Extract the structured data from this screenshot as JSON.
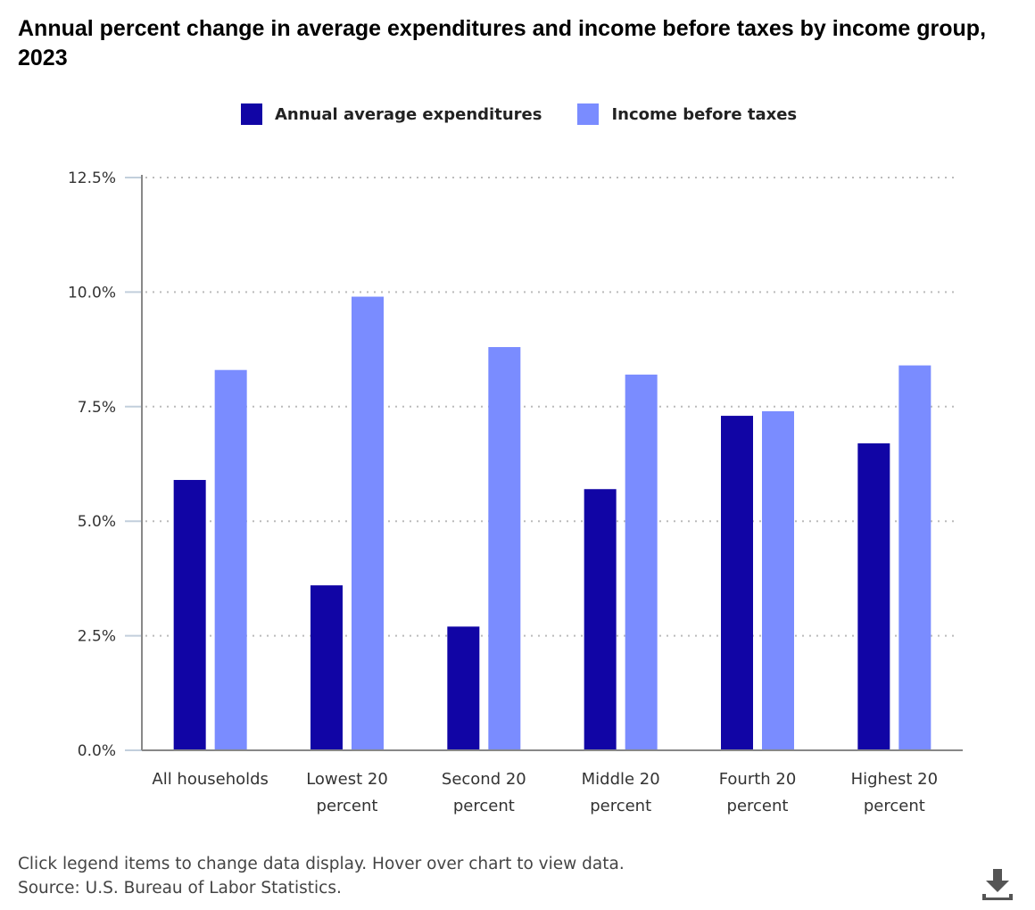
{
  "title": "Annual percent change in average expenditures and income before taxes by income group, 2023",
  "colors": {
    "expenditures": "#1105a5",
    "income": "#7a8cff"
  },
  "chart_data": {
    "type": "bar",
    "title": "Annual percent change in average expenditures and income before taxes by income group, 2023",
    "categories": [
      [
        "All households"
      ],
      [
        "Lowest 20",
        "percent"
      ],
      [
        "Second 20",
        "percent"
      ],
      [
        "Middle 20",
        "percent"
      ],
      [
        "Fourth 20",
        "percent"
      ],
      [
        "Highest 20",
        "percent"
      ]
    ],
    "series": [
      {
        "name": "Annual average expenditures",
        "values": [
          5.9,
          3.6,
          2.7,
          5.7,
          7.3,
          6.7
        ]
      },
      {
        "name": "Income before taxes",
        "values": [
          8.3,
          9.9,
          8.8,
          8.2,
          7.4,
          8.4
        ]
      }
    ],
    "ylim": [
      0,
      12.5
    ],
    "yticks": [
      "0.0%",
      "2.5%",
      "5.0%",
      "7.5%",
      "10.0%",
      "12.5%"
    ],
    "grid": true,
    "legend": "top-center",
    "xlabel": "",
    "ylabel": ""
  },
  "footer": {
    "note": "Click legend items to change data display. Hover over chart to view data.",
    "source": "Source: U.S. Bureau of Labor Statistics."
  },
  "download_icon": "download-icon"
}
